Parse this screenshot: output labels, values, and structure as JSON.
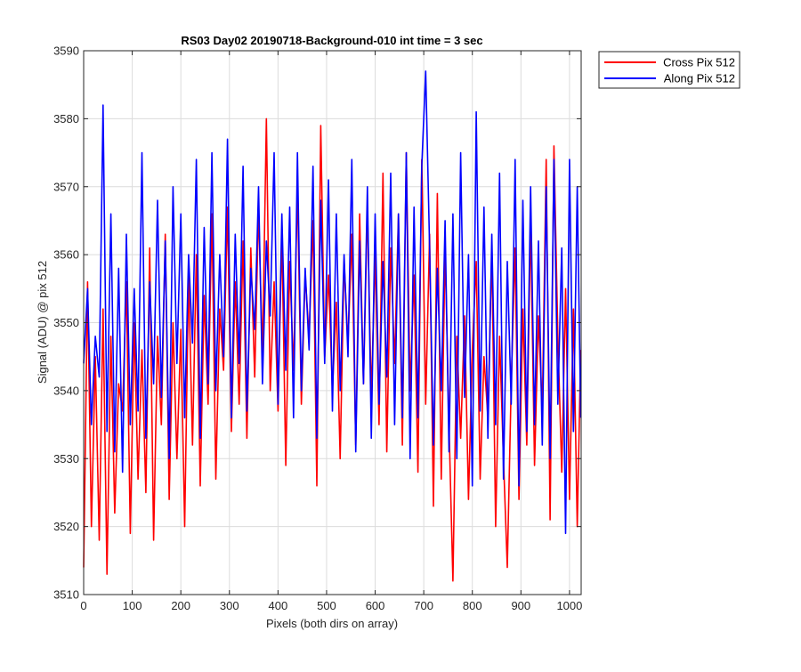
{
  "chart_data": {
    "type": "line",
    "title": "RS03 Day02 20190718-Background-010 int time = 3 sec",
    "xlabel": "Pixels (both dirs on array)",
    "ylabel": "Signal (ADU) @ pix 512",
    "xlim": [
      0,
      1024
    ],
    "ylim": [
      3510,
      3590
    ],
    "xticks": [
      0,
      100,
      200,
      300,
      400,
      500,
      600,
      700,
      800,
      900,
      1000
    ],
    "yticks": [
      3510,
      3520,
      3530,
      3540,
      3550,
      3560,
      3570,
      3580,
      3590
    ],
    "grid": true,
    "legend_position": "outside top-right",
    "series": [
      {
        "name": "Cross Pix 512",
        "color": "#ff0000",
        "x": [
          0,
          8,
          16,
          24,
          32,
          40,
          48,
          56,
          64,
          72,
          80,
          88,
          96,
          104,
          112,
          120,
          128,
          136,
          144,
          152,
          160,
          168,
          176,
          184,
          192,
          200,
          208,
          216,
          224,
          232,
          240,
          248,
          256,
          264,
          272,
          280,
          288,
          296,
          304,
          312,
          320,
          328,
          336,
          344,
          352,
          360,
          368,
          376,
          384,
          392,
          400,
          408,
          416,
          424,
          432,
          440,
          448,
          456,
          464,
          472,
          480,
          488,
          496,
          504,
          512,
          520,
          528,
          536,
          544,
          552,
          560,
          568,
          576,
          584,
          592,
          600,
          608,
          616,
          624,
          632,
          640,
          648,
          656,
          664,
          672,
          680,
          688,
          696,
          704,
          712,
          720,
          728,
          736,
          744,
          752,
          760,
          768,
          776,
          784,
          792,
          800,
          808,
          816,
          824,
          832,
          840,
          848,
          856,
          864,
          872,
          880,
          888,
          896,
          904,
          912,
          920,
          928,
          936,
          944,
          952,
          960,
          968,
          976,
          984,
          992,
          1000,
          1008,
          1016,
          1023
        ],
        "y": [
          3514,
          3556,
          3520,
          3545,
          3518,
          3552,
          3513,
          3548,
          3522,
          3541,
          3537,
          3556,
          3519,
          3550,
          3527,
          3546,
          3525,
          3561,
          3518,
          3548,
          3535,
          3563,
          3524,
          3550,
          3530,
          3549,
          3520,
          3557,
          3532,
          3560,
          3526,
          3554,
          3538,
          3566,
          3527,
          3552,
          3543,
          3567,
          3534,
          3556,
          3538,
          3562,
          3533,
          3561,
          3542,
          3567,
          3545,
          3580,
          3540,
          3556,
          3537,
          3563,
          3529,
          3559,
          3543,
          3570,
          3538,
          3557,
          3548,
          3565,
          3526,
          3579,
          3545,
          3557,
          3540,
          3553,
          3530,
          3559,
          3547,
          3563,
          3532,
          3566,
          3541,
          3567,
          3539,
          3560,
          3535,
          3572,
          3531,
          3561,
          3544,
          3566,
          3532,
          3575,
          3540,
          3557,
          3528,
          3574,
          3538,
          3563,
          3523,
          3569,
          3527,
          3561,
          3535,
          3512,
          3548,
          3533,
          3551,
          3524,
          3546,
          3559,
          3527,
          3545,
          3536,
          3561,
          3520,
          3548,
          3530,
          3514,
          3541,
          3561,
          3524,
          3552,
          3532,
          3565,
          3529,
          3551,
          3537,
          3574,
          3521,
          3576,
          3548,
          3528,
          3555,
          3524,
          3552,
          3520,
          3546
        ]
      },
      {
        "name": "Along Pix 512",
        "color": "#0000ff",
        "x": [
          0,
          8,
          16,
          24,
          32,
          40,
          48,
          56,
          64,
          72,
          80,
          88,
          96,
          104,
          112,
          120,
          128,
          136,
          144,
          152,
          160,
          168,
          176,
          184,
          192,
          200,
          208,
          216,
          224,
          232,
          240,
          248,
          256,
          264,
          272,
          280,
          288,
          296,
          304,
          312,
          320,
          328,
          336,
          344,
          352,
          360,
          368,
          376,
          384,
          392,
          400,
          408,
          416,
          424,
          432,
          440,
          448,
          456,
          464,
          472,
          480,
          488,
          496,
          504,
          512,
          520,
          528,
          536,
          544,
          552,
          560,
          568,
          576,
          584,
          592,
          600,
          608,
          616,
          624,
          632,
          640,
          648,
          656,
          664,
          672,
          680,
          688,
          696,
          704,
          712,
          720,
          728,
          736,
          744,
          752,
          760,
          768,
          776,
          784,
          792,
          800,
          808,
          816,
          824,
          832,
          840,
          848,
          856,
          864,
          872,
          880,
          888,
          896,
          904,
          912,
          920,
          928,
          936,
          944,
          952,
          960,
          968,
          976,
          984,
          992,
          1000,
          1008,
          1016,
          1023
        ],
        "y": [
          3544,
          3555,
          3535,
          3548,
          3542,
          3582,
          3534,
          3566,
          3531,
          3558,
          3528,
          3563,
          3535,
          3555,
          3537,
          3575,
          3533,
          3556,
          3541,
          3568,
          3539,
          3562,
          3530,
          3570,
          3544,
          3566,
          3536,
          3560,
          3547,
          3574,
          3533,
          3564,
          3541,
          3575,
          3540,
          3560,
          3545,
          3577,
          3536,
          3563,
          3544,
          3573,
          3537,
          3558,
          3549,
          3570,
          3541,
          3562,
          3551,
          3575,
          3538,
          3566,
          3543,
          3567,
          3536,
          3575,
          3540,
          3558,
          3546,
          3573,
          3533,
          3568,
          3544,
          3571,
          3537,
          3566,
          3540,
          3560,
          3545,
          3574,
          3531,
          3562,
          3541,
          3570,
          3533,
          3566,
          3538,
          3559,
          3542,
          3572,
          3535,
          3566,
          3536,
          3575,
          3530,
          3567,
          3536,
          3573,
          3587,
          3561,
          3532,
          3558,
          3540,
          3565,
          3531,
          3566,
          3530,
          3575,
          3539,
          3560,
          3526,
          3581,
          3537,
          3567,
          3533,
          3563,
          3535,
          3572,
          3527,
          3559,
          3538,
          3574,
          3526,
          3568,
          3534,
          3570,
          3535,
          3562,
          3532,
          3570,
          3530,
          3574,
          3538,
          3561,
          3519,
          3574,
          3534,
          3570,
          3536
        ]
      }
    ]
  }
}
